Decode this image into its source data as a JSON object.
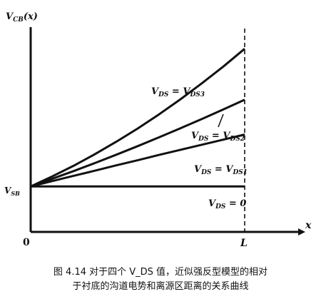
{
  "chart_data": {
    "type": "line",
    "y_axis_label": "V_CB(x)",
    "x_axis_label": "x",
    "origin_label": "0",
    "x_tick_label": "L",
    "y_tick_label": "V_SB",
    "x": [
      0,
      0.1,
      0.2,
      0.3,
      0.4,
      0.5,
      0.6,
      0.7,
      0.8,
      0.9,
      1.0
    ],
    "ylim": [
      0,
      1
    ],
    "series": [
      {
        "name": "V_DS = V_DS3",
        "values": [
          0.196,
          0.239,
          0.285,
          0.335,
          0.389,
          0.446,
          0.507,
          0.572,
          0.641,
          0.713,
          0.79
        ]
      },
      {
        "name": "V_DS = V_DS2",
        "values": [
          0.196,
          0.229,
          0.262,
          0.297,
          0.333,
          0.37,
          0.408,
          0.447,
          0.487,
          0.528,
          0.57
        ]
      },
      {
        "name": "V_DS = V_DS1",
        "values": [
          0.196,
          0.219,
          0.242,
          0.264,
          0.287,
          0.309,
          0.332,
          0.354,
          0.376,
          0.398,
          0.42
        ]
      },
      {
        "name": "V_DS = 0",
        "values": [
          0.196,
          0.196,
          0.196,
          0.196,
          0.196,
          0.196,
          0.196,
          0.196,
          0.196,
          0.196,
          0.196
        ]
      }
    ]
  },
  "caption": {
    "line1": "图 4.14  对于四个 V_DS 值，近似强反型模型的相对",
    "line2": "于衬底的沟道电势和离源区距离的关系曲线"
  }
}
